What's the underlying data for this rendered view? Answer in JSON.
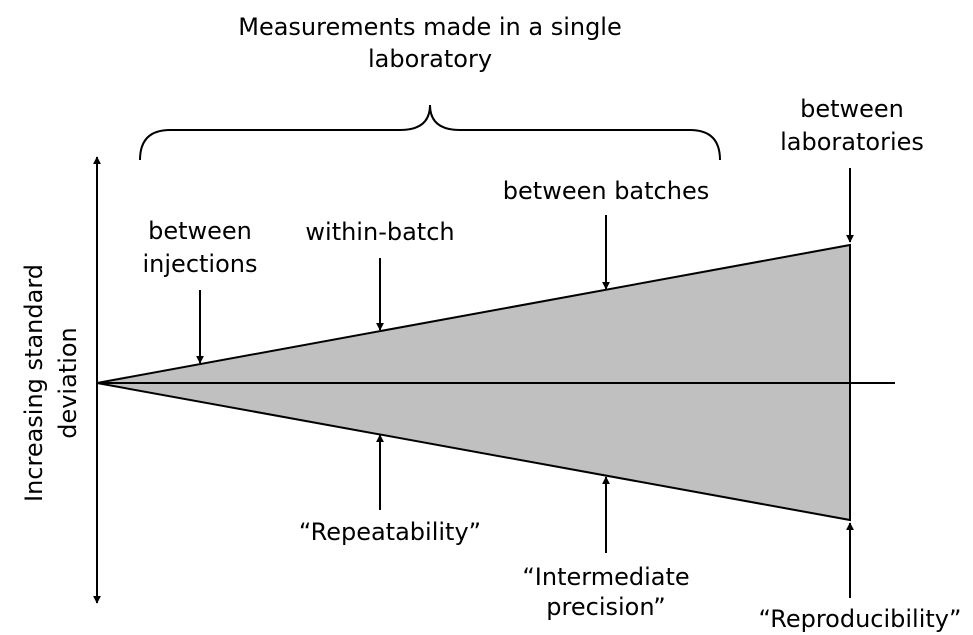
{
  "title": [
    "Measurements made in a single",
    "laboratory"
  ],
  "axis_label": [
    "Increasing standard",
    "deviation"
  ],
  "labels": {
    "between_injections": [
      "between",
      "injections"
    ],
    "within_batch": [
      "within-batch"
    ],
    "between_batches": [
      "between batches"
    ],
    "between_laboratories": [
      "between",
      "laboratories"
    ],
    "repeatability": [
      "“Repeatability”"
    ],
    "intermediate_precision": [
      "“Intermediate",
      "precision”"
    ],
    "reproducibility": [
      "“Reproducibility”"
    ]
  }
}
